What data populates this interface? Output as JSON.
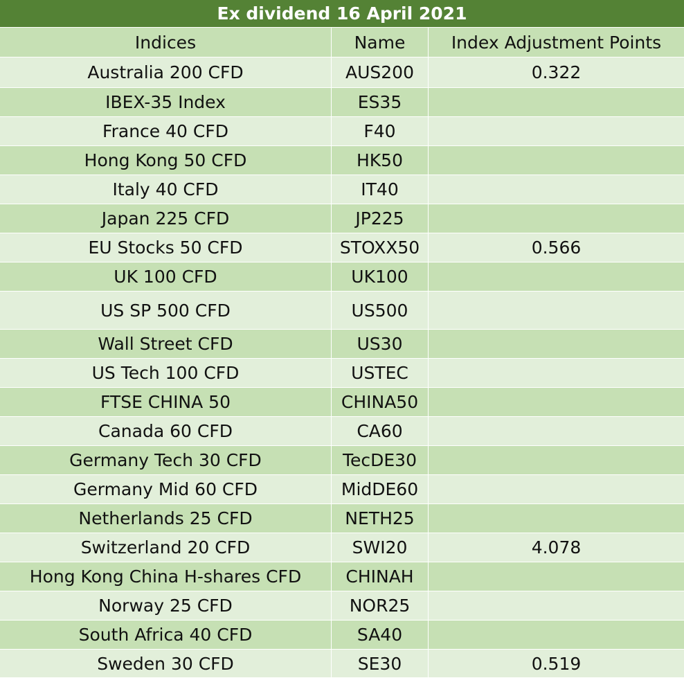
{
  "table": {
    "title": "Ex dividend 16 April 2021",
    "headers": [
      "Indices",
      "Name",
      "Index Adjustment Points"
    ],
    "rows": [
      {
        "index": "Australia 200 CFD",
        "name": "AUS200",
        "points": "0.322"
      },
      {
        "index": "IBEX-35 Index",
        "name": "ES35",
        "points": ""
      },
      {
        "index": "France 40 CFD",
        "name": "F40",
        "points": ""
      },
      {
        "index": "Hong Kong 50 CFD",
        "name": "HK50",
        "points": ""
      },
      {
        "index": "Italy 40 CFD",
        "name": "IT40",
        "points": ""
      },
      {
        "index": "Japan 225 CFD",
        "name": "JP225",
        "points": ""
      },
      {
        "index": "EU Stocks 50 CFD",
        "name": "STOXX50",
        "points": "0.566"
      },
      {
        "index": "UK 100 CFD",
        "name": "UK100",
        "points": ""
      },
      {
        "index": "US SP 500 CFD",
        "name": "US500",
        "points": ""
      },
      {
        "index": "Wall Street CFD",
        "name": "US30",
        "points": ""
      },
      {
        "index": "US Tech 100 CFD",
        "name": "USTEC",
        "points": ""
      },
      {
        "index": "FTSE CHINA 50",
        "name": "CHINA50",
        "points": ""
      },
      {
        "index": "Canada 60 CFD",
        "name": "CA60",
        "points": ""
      },
      {
        "index": "Germany Tech 30 CFD",
        "name": "TecDE30",
        "points": ""
      },
      {
        "index": "Germany Mid 60 CFD",
        "name": "MidDE60",
        "points": ""
      },
      {
        "index": "Netherlands 25 CFD",
        "name": "NETH25",
        "points": ""
      },
      {
        "index": "Switzerland 20 CFD",
        "name": "SWI20",
        "points": "4.078"
      },
      {
        "index": "Hong Kong China H-shares CFD",
        "name": "CHINAH",
        "points": ""
      },
      {
        "index": "Norway 25 CFD",
        "name": "NOR25",
        "points": ""
      },
      {
        "index": "South Africa 40 CFD",
        "name": "SA40",
        "points": ""
      },
      {
        "index": "Sweden 30 CFD",
        "name": "SE30",
        "points": "0.519"
      }
    ]
  },
  "colors": {
    "title_bg": "#548235",
    "row_dark": "#c6e0b4",
    "row_light": "#e2efda"
  }
}
